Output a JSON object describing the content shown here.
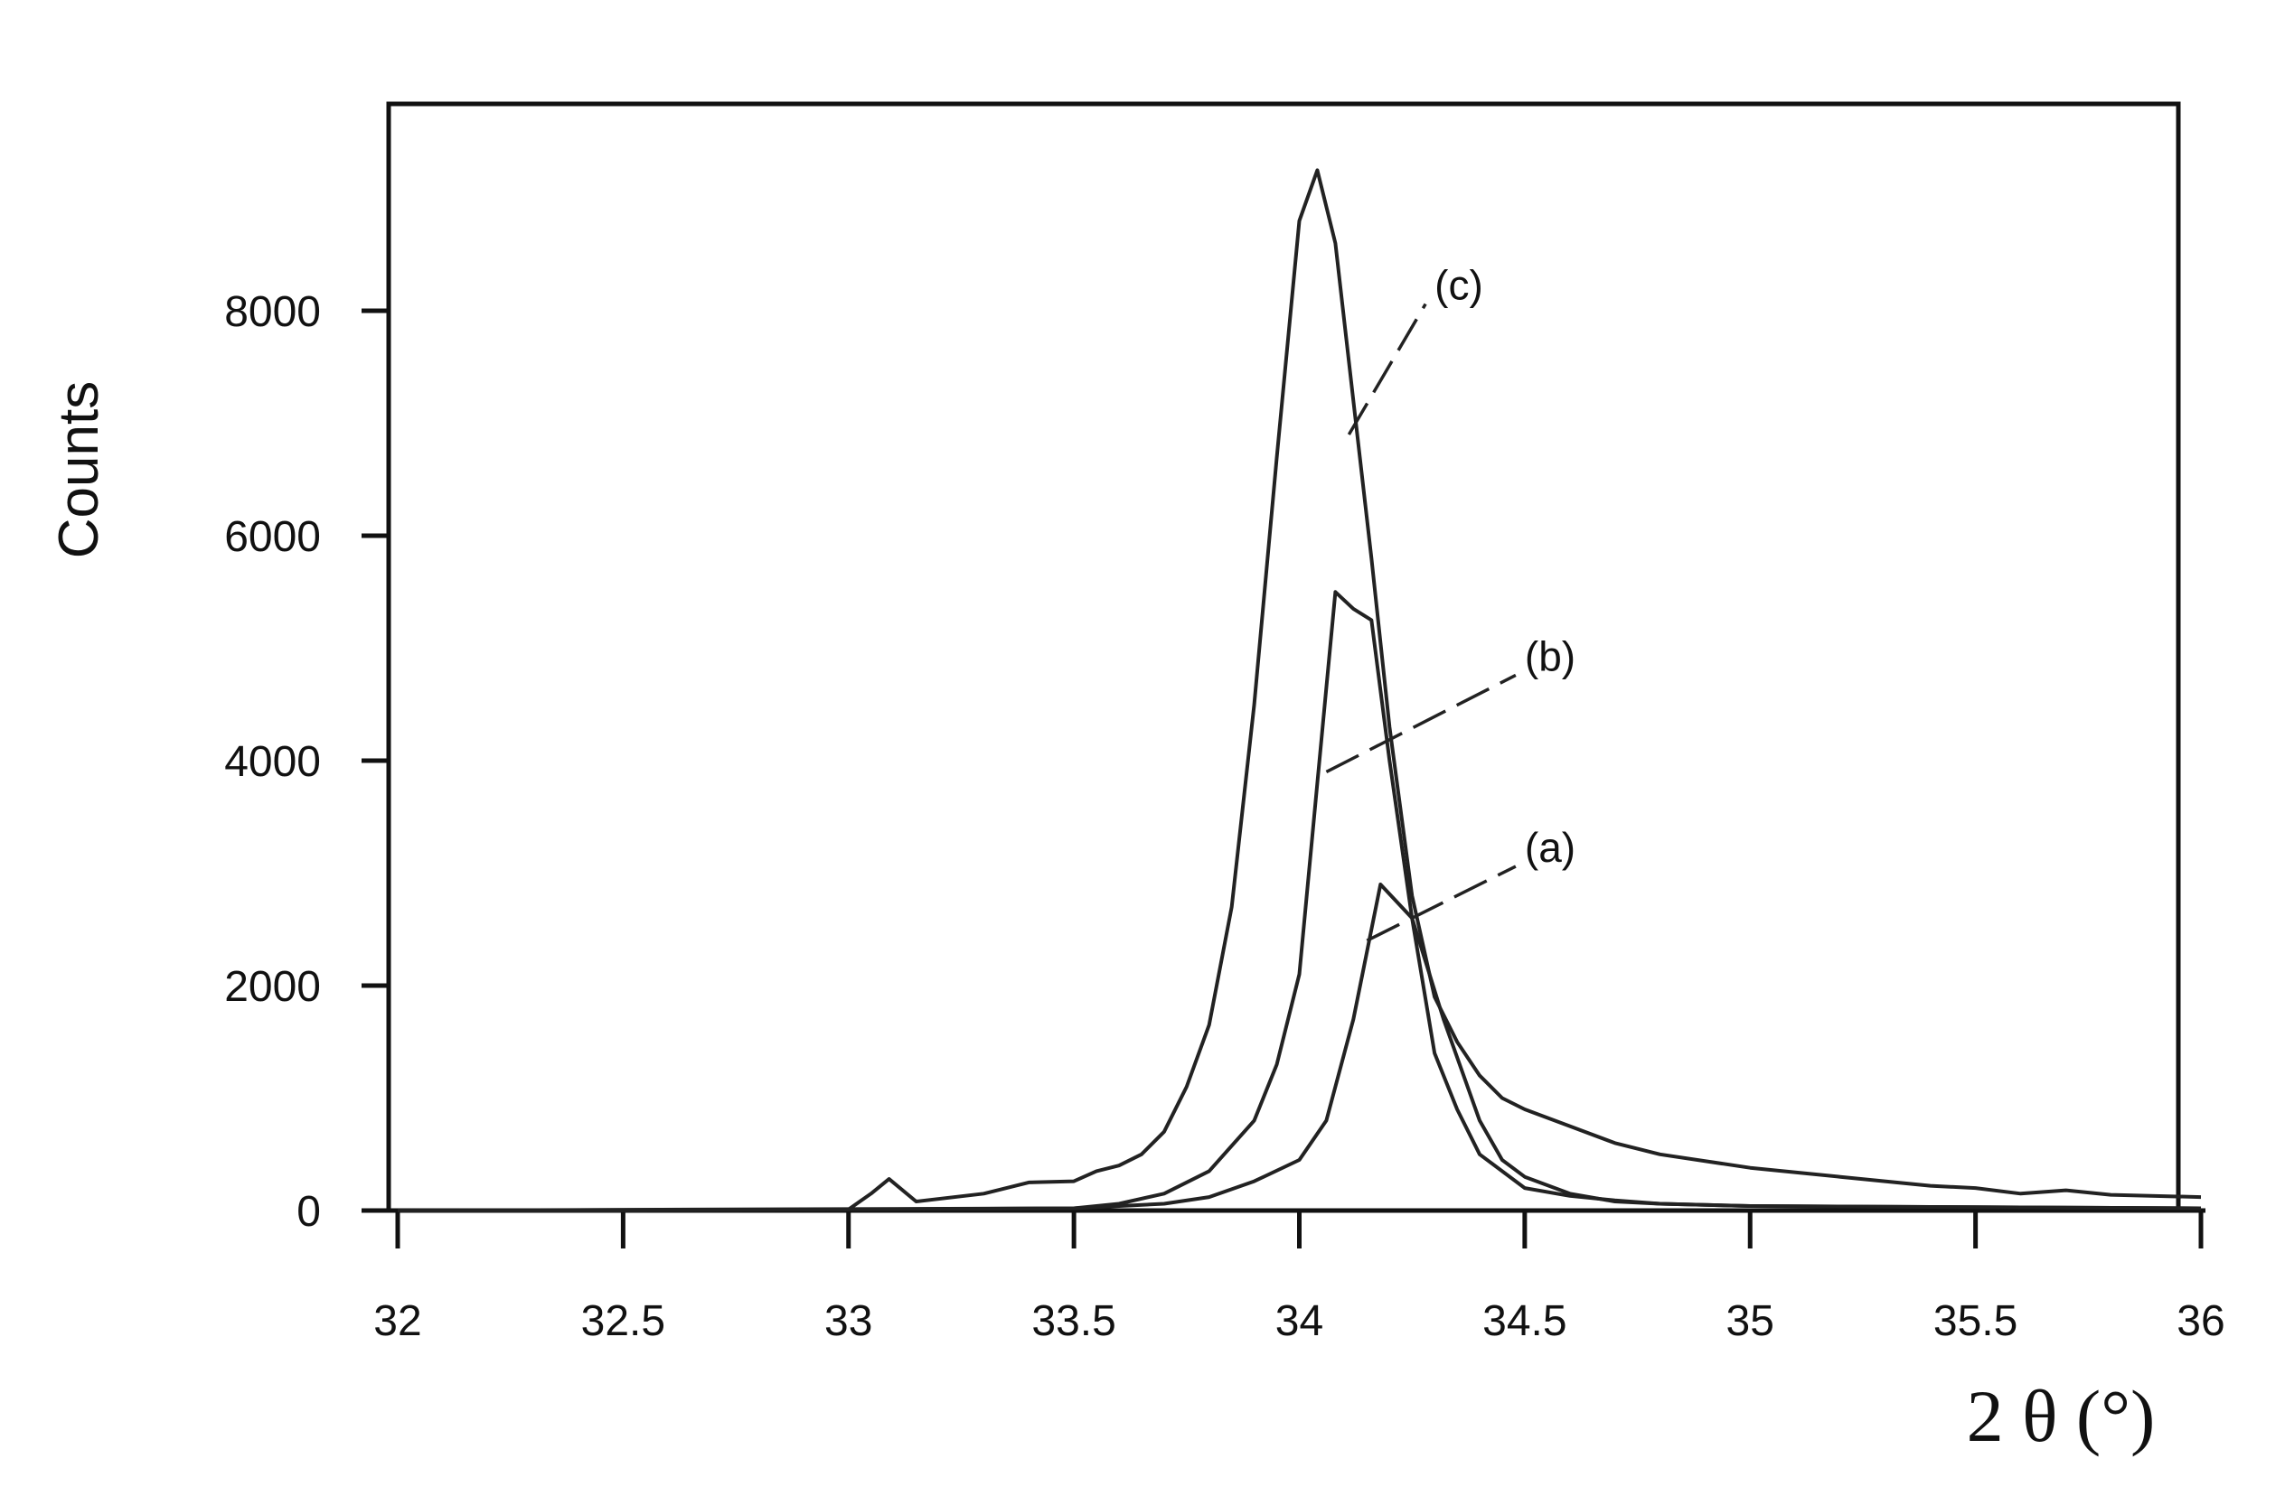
{
  "chart_data": {
    "type": "line",
    "title": "",
    "xlabel": "2 θ (°)",
    "ylabel": "Counts",
    "xlim": [
      32,
      36
    ],
    "ylim": [
      0,
      9800
    ],
    "x_ticks": [
      "32",
      "32.5",
      "33",
      "33.5",
      "34",
      "34.5",
      "35",
      "35.5",
      "36"
    ],
    "y_ticks": [
      "0",
      "2000",
      "4000",
      "6000",
      "8000"
    ],
    "grid": false,
    "legend": "none",
    "series": [
      {
        "name": "(a)",
        "label_pos": [
          34.5,
          3100
        ],
        "leader_from": [
          34.15,
          2400
        ],
        "x": [
          32.0,
          33.0,
          33.5,
          33.7,
          33.8,
          33.9,
          34.0,
          34.06,
          34.12,
          34.18,
          34.25,
          34.32,
          34.4,
          34.45,
          34.5,
          34.6,
          34.7,
          34.8,
          35.0,
          35.5,
          36.0
        ],
        "y": [
          0,
          10,
          20,
          60,
          120,
          260,
          450,
          800,
          1700,
          2900,
          2600,
          1700,
          800,
          450,
          300,
          150,
          80,
          60,
          40,
          30,
          20
        ]
      },
      {
        "name": "(b)",
        "label_pos": [
          34.5,
          4800
        ],
        "leader_from": [
          34.06,
          3900
        ],
        "x": [
          32.0,
          33.5,
          33.6,
          33.7,
          33.8,
          33.9,
          33.95,
          34.0,
          34.04,
          34.08,
          34.12,
          34.16,
          34.2,
          34.25,
          34.3,
          34.35,
          34.4,
          34.5,
          34.6,
          34.7,
          34.8,
          35.0,
          35.5,
          36.0
        ],
        "y": [
          0,
          20,
          60,
          150,
          350,
          800,
          1300,
          2100,
          3800,
          5500,
          5350,
          5250,
          4000,
          2600,
          1400,
          900,
          500,
          200,
          130,
          90,
          60,
          40,
          30,
          20
        ]
      },
      {
        "name": "(c)",
        "label_pos": [
          34.3,
          8100
        ],
        "leader_from": [
          34.11,
          6900
        ],
        "x": [
          32.0,
          32.5,
          33.0,
          33.05,
          33.09,
          33.15,
          33.3,
          33.4,
          33.5,
          33.55,
          33.6,
          33.65,
          33.7,
          33.75,
          33.8,
          33.85,
          33.9,
          33.95,
          34.0,
          34.04,
          34.08,
          34.12,
          34.16,
          34.2,
          34.25,
          34.3,
          34.35,
          34.4,
          34.45,
          34.5,
          34.6,
          34.7,
          34.8,
          35.0,
          35.2,
          35.4,
          35.5,
          35.6,
          35.7,
          35.8,
          36.0
        ],
        "y": [
          0,
          0,
          10,
          150,
          280,
          80,
          150,
          250,
          260,
          350,
          400,
          500,
          700,
          1100,
          1650,
          2700,
          4500,
          6700,
          8800,
          9250,
          8600,
          7200,
          5800,
          4300,
          2800,
          1900,
          1500,
          1200,
          1000,
          900,
          750,
          600,
          500,
          380,
          300,
          220,
          200,
          150,
          180,
          140,
          120
        ]
      }
    ]
  }
}
